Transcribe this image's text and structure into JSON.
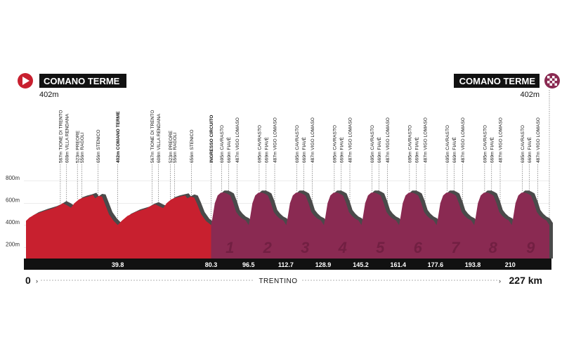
{
  "start": {
    "name": "COMANO TERME",
    "elevation": "402m"
  },
  "finish": {
    "name": "COMANO TERME",
    "elevation": "402m"
  },
  "axis": {
    "start_label": "0",
    "end_label": "227 km",
    "region": "TRENTINO"
  },
  "colors": {
    "main": "#c8202f",
    "circuit": "#8a2a52",
    "shadow": "#4a4a4a",
    "band": "#111111"
  },
  "chart_data": {
    "type": "area",
    "title": "",
    "xlabel": "",
    "ylabel": "",
    "xlim": [
      0,
      227
    ],
    "ylim": [
      0,
      900
    ],
    "ytick_labels": [
      "800m",
      "600m",
      "400m",
      "200m"
    ],
    "yticks": [
      800,
      600,
      400,
      200
    ],
    "km_markers": [
      "39.8",
      "80.3",
      "96.5",
      "112.7",
      "128.9",
      "145.2",
      "161.4",
      "177.6",
      "193.8",
      "210"
    ],
    "km_marker_values": [
      39.8,
      80.3,
      96.5,
      112.7,
      128.9,
      145.2,
      161.4,
      177.6,
      193.8,
      210
    ],
    "circuit_start_km": 80.3,
    "circuit_laps": [
      "1",
      "2",
      "3",
      "4",
      "5",
      "6",
      "7",
      "8",
      "9"
    ],
    "profile": {
      "x": [
        0,
        1.5,
        4,
        8,
        12,
        14,
        16,
        17.5,
        19.5,
        21,
        23,
        25,
        27,
        29,
        30,
        31.5,
        33,
        34.3,
        36,
        38,
        39.8,
        41.5,
        44,
        48,
        52,
        54,
        56,
        57.5,
        59.5,
        61,
        63,
        65,
        67,
        69,
        70,
        71.5,
        73,
        74.3,
        76,
        78,
        80.3
      ],
      "y": [
        440,
        470,
        500,
        530,
        555,
        575,
        600,
        585,
        560,
        600,
        635,
        650,
        660,
        675,
        645,
        665,
        660,
        590,
        500,
        440,
        402,
        440,
        485,
        525,
        550,
        575,
        590,
        575,
        555,
        600,
        635,
        650,
        660,
        670,
        645,
        660,
        650,
        590,
        500,
        440,
        402
      ]
    },
    "circuit_profile": {
      "x": [
        0,
        0.6,
        1.6,
        2.8,
        4.2,
        5.8,
        7.0,
        8.3,
        9.6,
        10.8,
        12.0,
        13.4,
        14.9,
        16.2
      ],
      "y": [
        402,
        470,
        600,
        670,
        695,
        695,
        685,
        669,
        600,
        520,
        487,
        460,
        445,
        402
      ]
    },
    "finish_km": 227,
    "waypoints": [
      {
        "km": 14.9,
        "label": "567m TIONE DI TRENTO",
        "bold": false
      },
      {
        "km": 17.6,
        "label": "608m VILLA RENDANA",
        "bold": false
      },
      {
        "km": 22.3,
        "label": "523m PREORE",
        "bold": false
      },
      {
        "km": 24.2,
        "label": "556m RAGOLI",
        "bold": false
      },
      {
        "km": 31.3,
        "label": "656m STENICO",
        "bold": false
      },
      {
        "km": 39.8,
        "label": "402m COMANO TERME",
        "bold": true
      },
      {
        "km": 54.7,
        "label": "567m TIONE DI TRENTO",
        "bold": false
      },
      {
        "km": 57.5,
        "label": "608m VILLA RENDANA",
        "bold": false
      },
      {
        "km": 62.6,
        "label": "523m PREORE",
        "bold": false
      },
      {
        "km": 64.5,
        "label": "556m RAGOLI",
        "bold": false
      },
      {
        "km": 71.8,
        "label": "656m STENICO",
        "bold": false
      },
      {
        "km": 80.3,
        "label": "INGRESSO CIRCUITO",
        "bold": true
      }
    ],
    "lap_waypoints": [
      {
        "offset": 4.5,
        "label": "695m CAVRASTO"
      },
      {
        "offset": 7.5,
        "label": "669m FIAVÈ"
      },
      {
        "offset": 11.2,
        "label": "487m VIGO LOMASO"
      }
    ]
  }
}
